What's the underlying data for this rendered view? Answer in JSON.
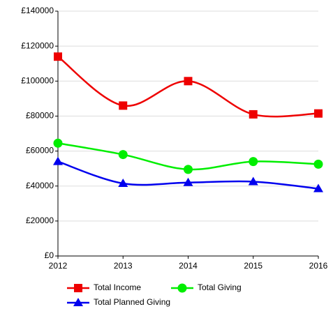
{
  "chart_data": {
    "type": "line",
    "x": [
      2012,
      2013,
      2014,
      2015,
      2016
    ],
    "xlim": [
      2012,
      2016
    ],
    "xticks": [
      2012,
      2013,
      2014,
      2015,
      2016
    ],
    "ylim": [
      0,
      140000
    ],
    "yticks": [
      {
        "value": 0,
        "label": "£0"
      },
      {
        "value": 20000,
        "label": "£20000"
      },
      {
        "value": 40000,
        "label": "£40000"
      },
      {
        "value": 60000,
        "label": "£60000"
      },
      {
        "value": 80000,
        "label": "£80000"
      },
      {
        "value": 100000,
        "label": "£100000"
      },
      {
        "value": 120000,
        "label": "£120000"
      },
      {
        "value": 140000,
        "label": "£140000"
      }
    ],
    "grid": true,
    "legend": "bottom",
    "smooth": true,
    "series": [
      {
        "name": "Total Income",
        "color": "#ee0000",
        "marker": "square",
        "values": [
          114000,
          86000,
          100000,
          81000,
          81500
        ]
      },
      {
        "name": "Total Giving",
        "color": "#00ee00",
        "marker": "circle",
        "values": [
          64500,
          58000,
          49500,
          54000,
          52500
        ]
      },
      {
        "name": "Total Planned Giving",
        "color": "#0000ee",
        "marker": "triangle",
        "values": [
          54000,
          41500,
          42000,
          42500,
          38500
        ]
      }
    ]
  }
}
